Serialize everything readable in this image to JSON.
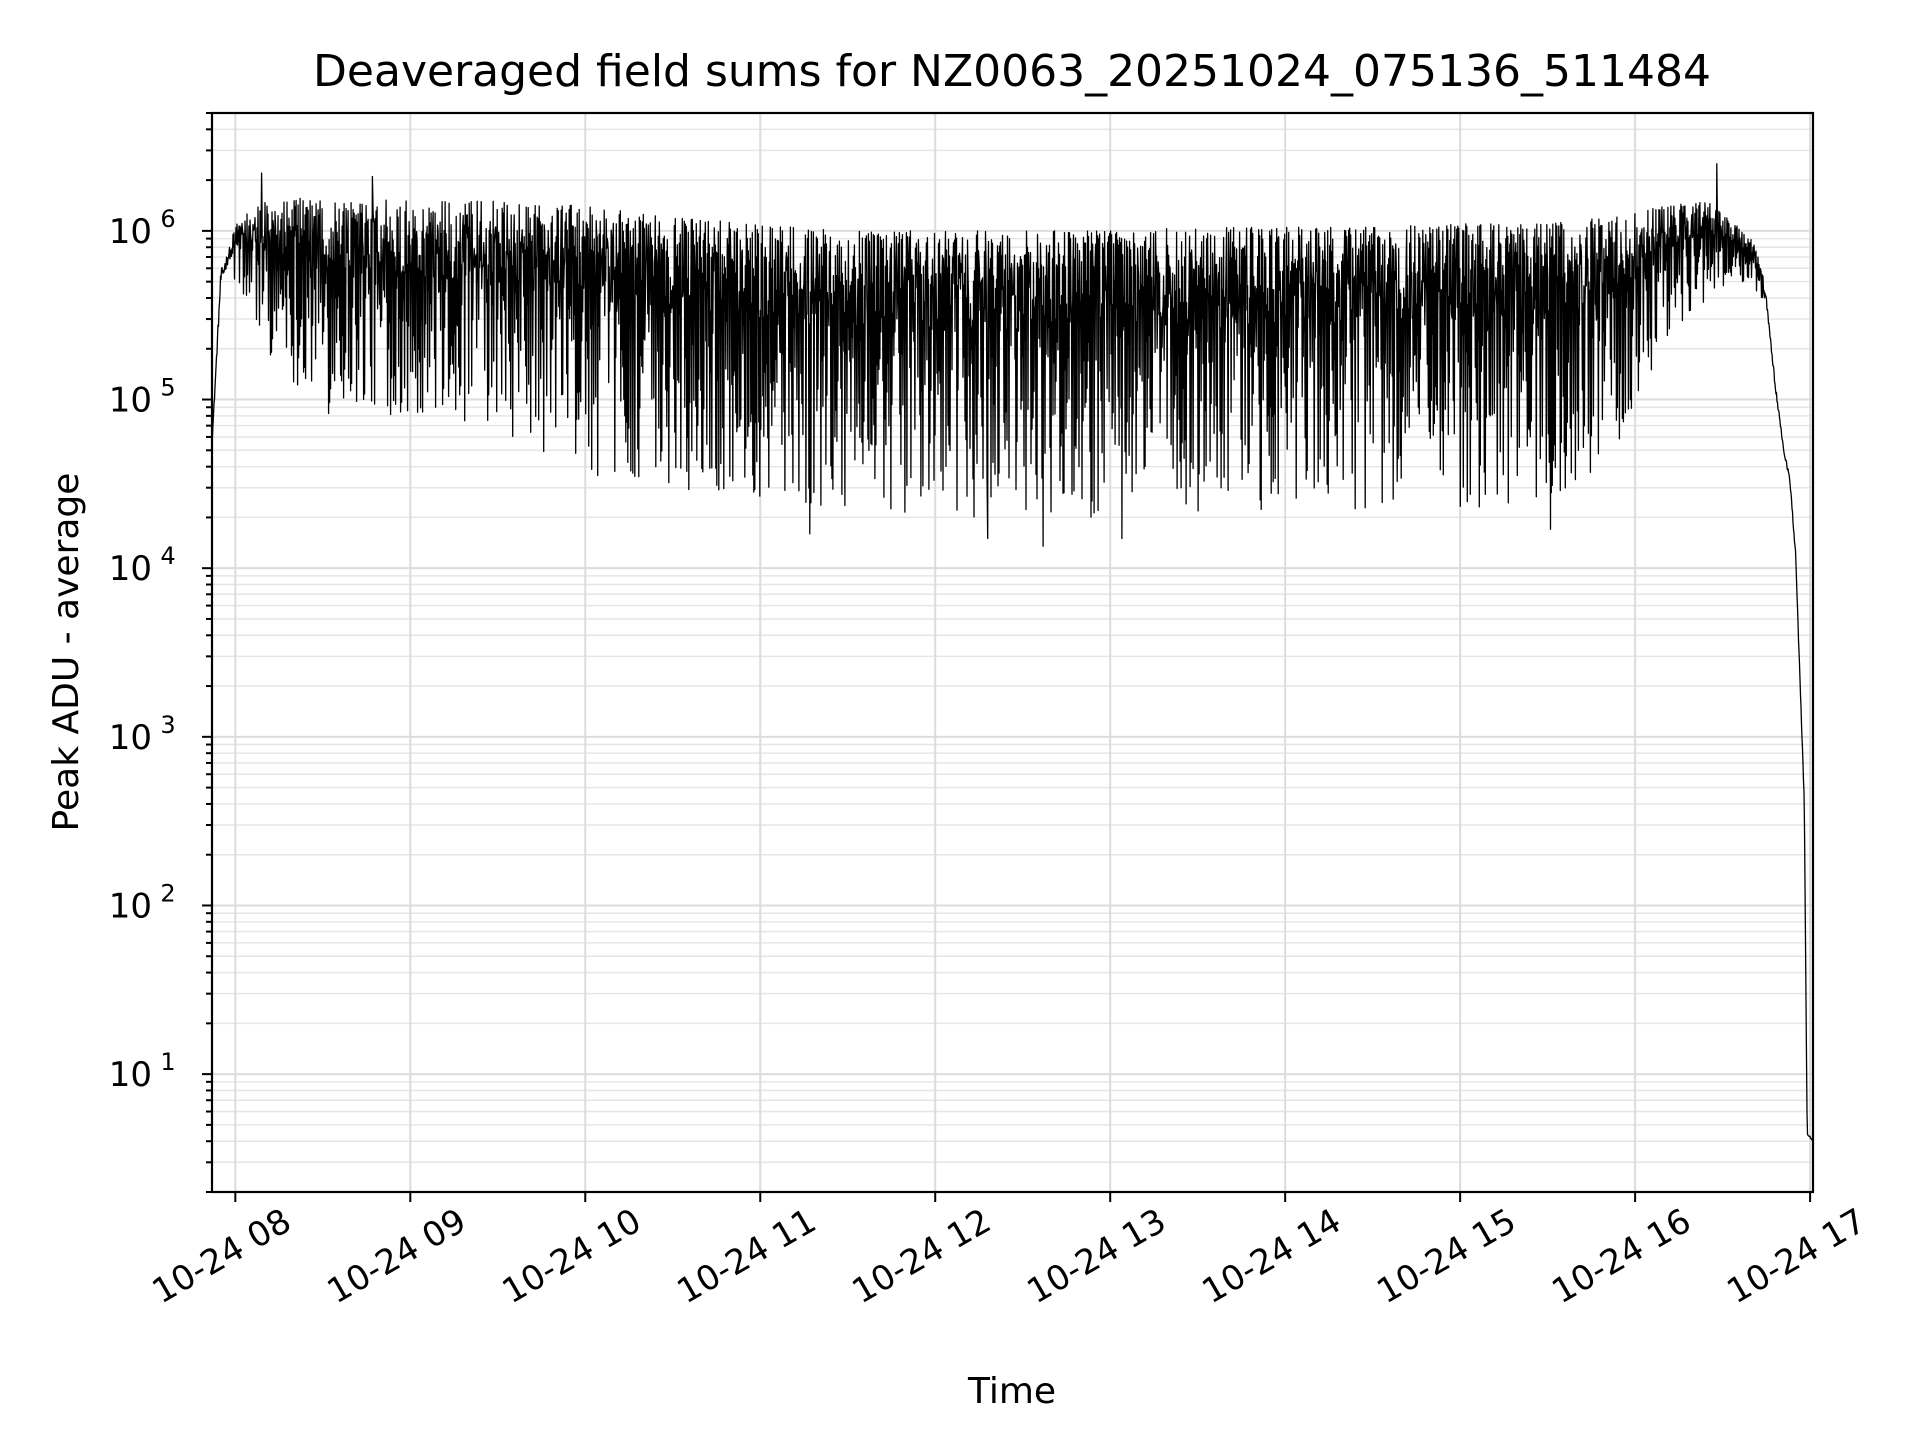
{
  "chart_data": {
    "type": "line",
    "title": "Deaveraged field sums for NZ0063_20251024_075136_511484",
    "xlabel": "Time",
    "ylabel": "Peak ADU - average",
    "xscale": "time",
    "yscale": "log",
    "xlim": [
      "2025-10-24 07:52",
      "2025-10-24 17:01"
    ],
    "ylim": [
      2,
      5000000
    ],
    "x_ticks": [
      "10-24 08",
      "10-24 09",
      "10-24 10",
      "10-24 11",
      "10-24 12",
      "10-24 13",
      "10-24 14",
      "10-24 15",
      "10-24 16",
      "10-24 17"
    ],
    "y_ticks": [
      {
        "base": "10",
        "exp": "1",
        "value": 10
      },
      {
        "base": "10",
        "exp": "2",
        "value": 100
      },
      {
        "base": "10",
        "exp": "3",
        "value": 1000
      },
      {
        "base": "10",
        "exp": "4",
        "value": 10000
      },
      {
        "base": "10",
        "exp": "5",
        "value": 100000
      },
      {
        "base": "10",
        "exp": "6",
        "value": 1000000
      }
    ],
    "grid": true,
    "series": [
      {
        "color": "#000000",
        "envelope": [
          {
            "x": "2025-10-24 07:52",
            "low": 50000,
            "high": 60000
          },
          {
            "x": "2025-10-24 07:55",
            "low": 300000,
            "high": 900000
          },
          {
            "x": "2025-10-24 07:58",
            "low": 500000,
            "high": 1100000
          },
          {
            "x": "2025-10-24 08:10",
            "low": 200000,
            "high": 1500000
          },
          {
            "x": "2025-10-24 08:30",
            "low": 80000,
            "high": 1600000
          },
          {
            "x": "2025-10-24 09:00",
            "low": 80000,
            "high": 1500000
          },
          {
            "x": "2025-10-24 09:30",
            "low": 60000,
            "high": 1500000
          },
          {
            "x": "2025-10-24 10:00",
            "low": 35000,
            "high": 1400000
          },
          {
            "x": "2025-10-24 10:30",
            "low": 30000,
            "high": 1200000
          },
          {
            "x": "2025-10-24 11:00",
            "low": 25000,
            "high": 1100000
          },
          {
            "x": "2025-10-24 11:30",
            "low": 22000,
            "high": 1000000
          },
          {
            "x": "2025-10-24 12:00",
            "low": 20000,
            "high": 1000000
          },
          {
            "x": "2025-10-24 12:30",
            "low": 20000,
            "high": 1000000
          },
          {
            "x": "2025-10-24 13:00",
            "low": 20000,
            "high": 1000000
          },
          {
            "x": "2025-10-24 13:30",
            "low": 20000,
            "high": 1050000
          },
          {
            "x": "2025-10-24 14:00",
            "low": 22000,
            "high": 1050000
          },
          {
            "x": "2025-10-24 14:30",
            "low": 22000,
            "high": 1050000
          },
          {
            "x": "2025-10-24 15:00",
            "low": 22000,
            "high": 1100000
          },
          {
            "x": "2025-10-24 15:30",
            "low": 25000,
            "high": 1100000
          },
          {
            "x": "2025-10-24 15:50",
            "low": 40000,
            "high": 1200000
          },
          {
            "x": "2025-10-24 16:10",
            "low": 200000,
            "high": 1400000
          },
          {
            "x": "2025-10-24 16:25",
            "low": 400000,
            "high": 1500000
          },
          {
            "x": "2025-10-24 16:40",
            "low": 500000,
            "high": 900000
          },
          {
            "x": "2025-10-24 16:45",
            "low": 300000,
            "high": 500000
          },
          {
            "x": "2025-10-24 16:48",
            "low": 100000,
            "high": 150000
          },
          {
            "x": "2025-10-24 16:51",
            "low": 40000,
            "high": 60000
          },
          {
            "x": "2025-10-24 16:53",
            "low": 30000,
            "high": 40000
          },
          {
            "x": "2025-10-24 16:55",
            "low": 10000,
            "high": 15000
          },
          {
            "x": "2025-10-24 16:58",
            "low": 350,
            "high": 500
          },
          {
            "x": "2025-10-24 16:59",
            "low": 4,
            "high": 5
          },
          {
            "x": "2025-10-24 17:01",
            "low": 4,
            "high": 4
          }
        ],
        "spikes": [
          {
            "x": "2025-10-24 08:09",
            "value": 2200000
          },
          {
            "x": "2025-10-24 08:47",
            "value": 2100000
          },
          {
            "x": "2025-10-24 16:28",
            "value": 2500000
          },
          {
            "x": "2025-10-24 11:17",
            "value": 16000
          },
          {
            "x": "2025-10-24 12:18",
            "value": 15000
          },
          {
            "x": "2025-10-24 12:37",
            "value": 13500
          },
          {
            "x": "2025-10-24 13:04",
            "value": 15000
          },
          {
            "x": "2025-10-24 15:31",
            "value": 17000
          }
        ]
      }
    ]
  }
}
